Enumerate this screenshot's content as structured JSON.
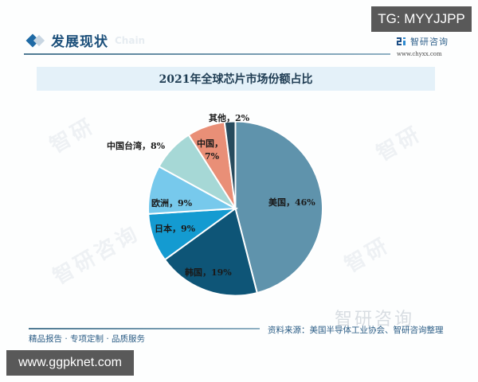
{
  "header": {
    "section_title": "发展现状",
    "section_subtitle": "Chain",
    "tg_badge": "TG: MYYJJPP",
    "brand_name": "智研咨询",
    "brand_url": "www.chyxx.com"
  },
  "chart_data": {
    "type": "pie",
    "title": "2021年全球芯片市场份额占比",
    "start_angle_deg": 0,
    "direction": "clockwise",
    "slices": [
      {
        "label": "美国",
        "value": 46,
        "display": "美国，46%",
        "color": "#5f93ac"
      },
      {
        "label": "韩国",
        "value": 19,
        "display": "韩国，19%",
        "color": "#0e5577"
      },
      {
        "label": "日本",
        "value": 9,
        "display": "日本，9%",
        "color": "#149bd1"
      },
      {
        "label": "欧洲",
        "value": 9,
        "display": "欧洲，9%",
        "color": "#77c9ec"
      },
      {
        "label": "中国台湾",
        "value": 8,
        "display": "中国台湾，8%",
        "color": "#a6d8d6"
      },
      {
        "label": "中国",
        "value": 7,
        "display": "中国，7%",
        "color": "#e98f77"
      },
      {
        "label": "其他",
        "value": 2,
        "display": "其他，2%",
        "color": "#274b5e"
      }
    ],
    "legend": "none",
    "data_labels": true
  },
  "footer": {
    "left_text": "精品报告 · 专项定制 · 品质服务",
    "source_text": "资料来源：美国半导体工业协会、智研咨询整理",
    "watermark_brand": "智研咨询",
    "url_badge": "www.ggpknet.com"
  }
}
